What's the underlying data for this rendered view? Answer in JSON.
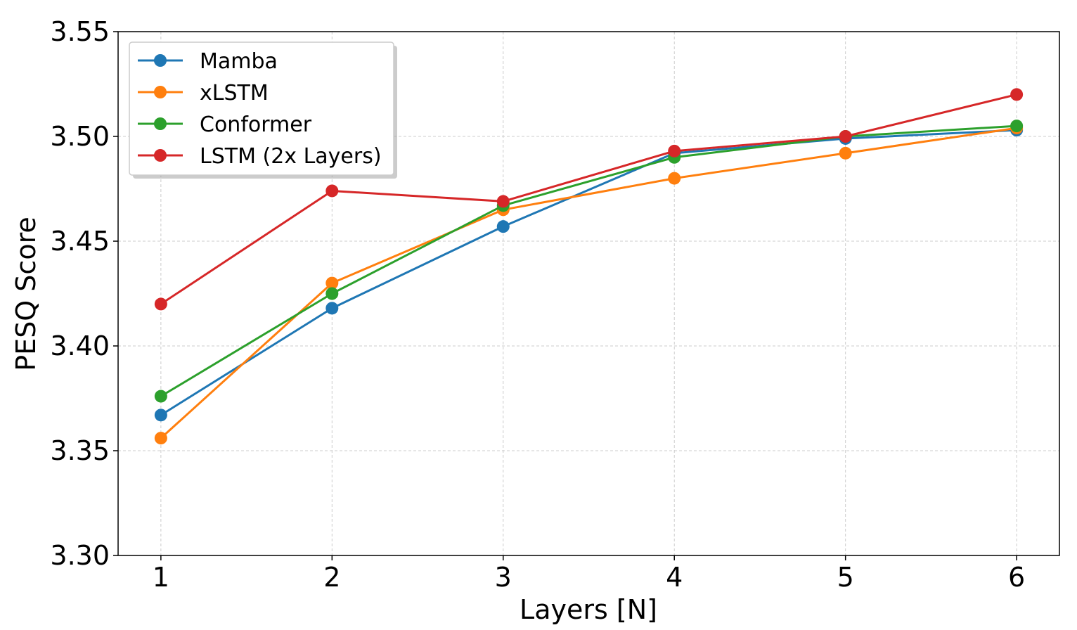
{
  "chart_data": {
    "type": "line",
    "xlabel": "Layers [N]",
    "ylabel": "PESQ Score",
    "x": [
      1,
      2,
      3,
      4,
      5,
      6
    ],
    "xticks": [
      "1",
      "2",
      "3",
      "4",
      "5",
      "6"
    ],
    "xlim": [
      0.75,
      6.25
    ],
    "ylim": [
      3.3,
      3.55
    ],
    "yticks": [
      "3.30",
      "3.35",
      "3.40",
      "3.45",
      "3.50",
      "3.55"
    ],
    "ytick_values": [
      3.3,
      3.35,
      3.4,
      3.45,
      3.5,
      3.55
    ],
    "grid": true,
    "legend_position": "top-left",
    "series": [
      {
        "name": "Mamba",
        "color": "#1f77b4",
        "values": [
          3.367,
          3.418,
          3.457,
          3.492,
          3.499,
          3.503
        ]
      },
      {
        "name": "xLSTM",
        "color": "#ff7f0e",
        "values": [
          3.356,
          3.43,
          3.465,
          3.48,
          3.492,
          3.504
        ]
      },
      {
        "name": "Conformer",
        "color": "#2ca02c",
        "values": [
          3.376,
          3.425,
          3.467,
          3.49,
          3.5,
          3.505
        ]
      },
      {
        "name": "LSTM (2x Layers)",
        "color": "#d62728",
        "values": [
          3.42,
          3.474,
          3.469,
          3.493,
          3.5,
          3.52
        ]
      }
    ]
  }
}
